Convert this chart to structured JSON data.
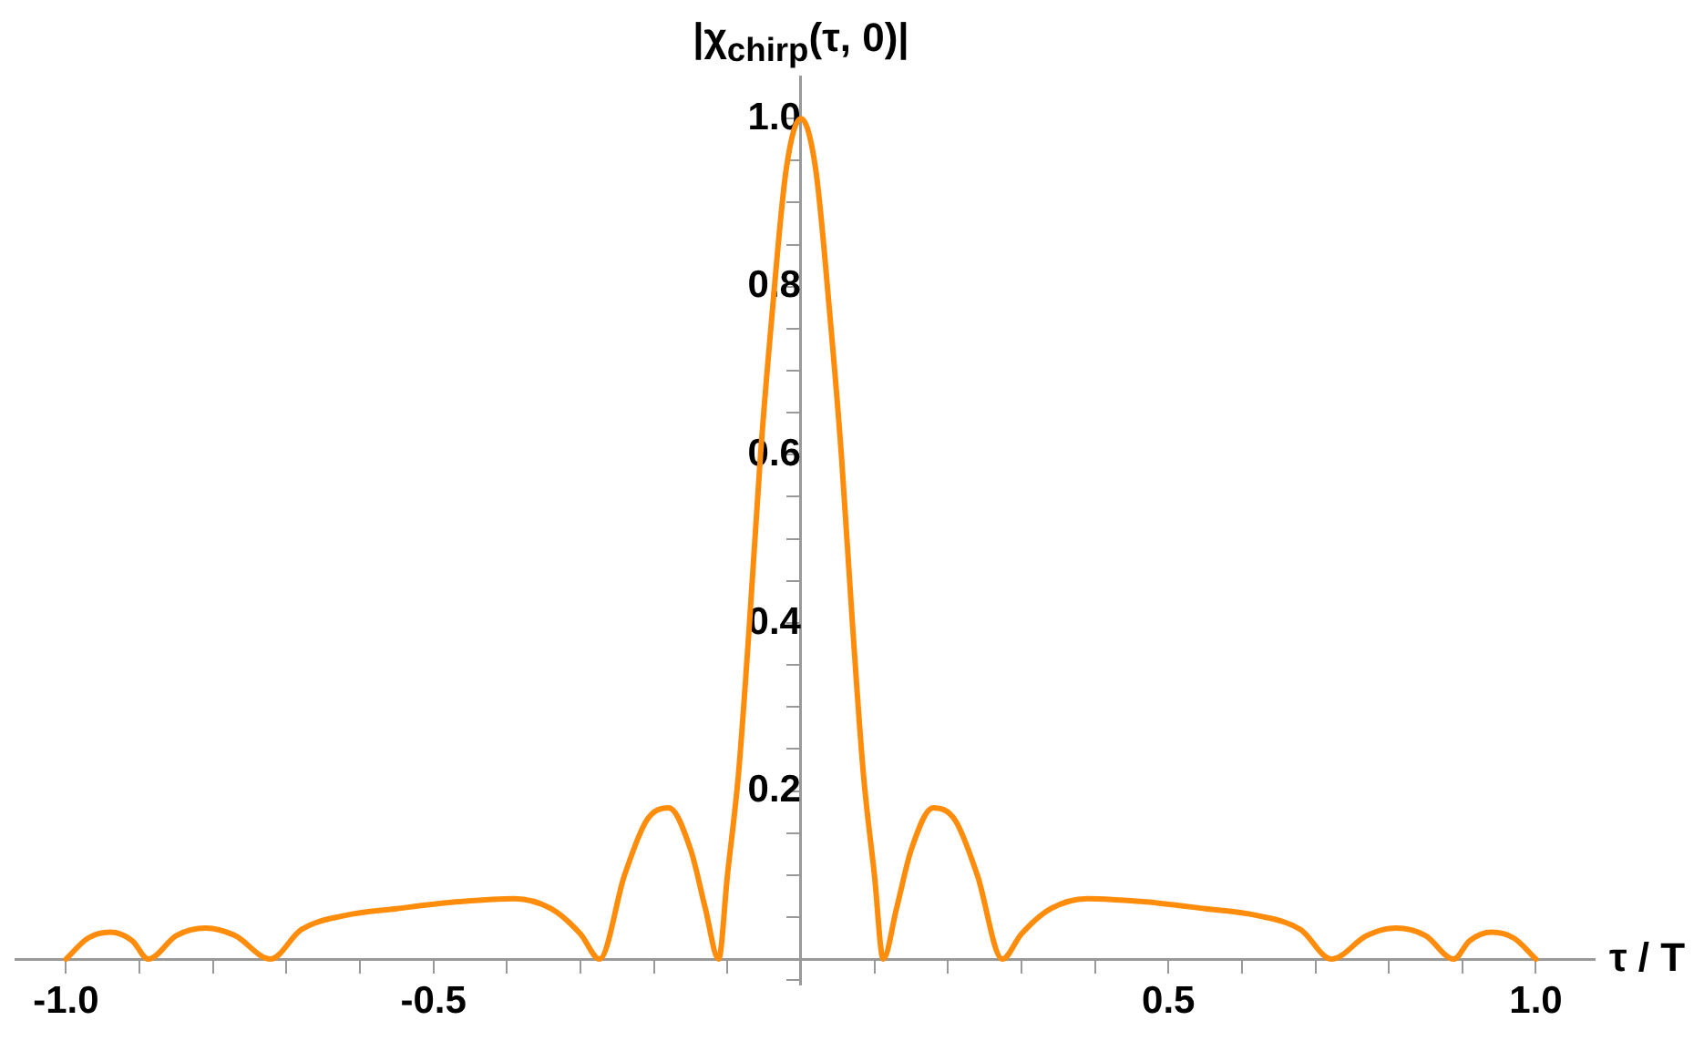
{
  "chart_data": {
    "type": "line",
    "xlabel": "τ / T",
    "ylabel": "|χ$_{chirp}$(τ, 0)|",
    "x": [
      -1,
      -0.97,
      -0.94,
      -0.91,
      -0.888,
      -0.85,
      -0.81,
      -0.77,
      -0.722,
      -0.68,
      -0.62,
      -0.55,
      -0.47,
      -0.39,
      -0.34,
      -0.3,
      -0.274,
      -0.24,
      -0.21,
      -0.18,
      -0.15,
      -0.13,
      -0.112,
      -0.1,
      -0.085,
      -0.07,
      -0.055,
      -0.04,
      -0.02,
      0,
      0.02,
      0.04,
      0.055,
      0.07,
      0.085,
      0.1,
      0.112,
      0.13,
      0.15,
      0.18,
      0.21,
      0.24,
      0.274,
      0.3,
      0.34,
      0.39,
      0.47,
      0.55,
      0.62,
      0.68,
      0.722,
      0.77,
      0.81,
      0.85,
      0.888,
      0.91,
      0.94,
      0.97,
      1
    ],
    "series": [
      {
        "color": "#ff8c0a",
        "values": [
          0,
          0.025,
          0.032,
          0.022,
          0,
          0.028,
          0.037,
          0.028,
          0,
          0.035,
          0.052,
          0.06,
          0.068,
          0.072,
          0.06,
          0.03,
          0,
          0.1,
          0.165,
          0.18,
          0.13,
          0.06,
          0,
          0.1,
          0.22,
          0.4,
          0.6,
          0.76,
          0.94,
          1,
          0.94,
          0.76,
          0.6,
          0.4,
          0.22,
          0.1,
          0,
          0.06,
          0.13,
          0.18,
          0.165,
          0.1,
          0,
          0.03,
          0.06,
          0.072,
          0.068,
          0.06,
          0.052,
          0.035,
          0,
          0.028,
          0.037,
          0.028,
          0,
          0.022,
          0.032,
          0.025,
          0
        ]
      }
    ],
    "xlim": [
      -1.07,
      1.08
    ],
    "ylim": [
      -0.03,
      1.05
    ],
    "xticks": [
      {
        "value": -1,
        "label": "-1.0"
      },
      {
        "value": -0.9,
        "label": null
      },
      {
        "value": -0.8,
        "label": null
      },
      {
        "value": -0.7,
        "label": null
      },
      {
        "value": -0.6,
        "label": null
      },
      {
        "value": -0.5,
        "label": "-0.5"
      },
      {
        "value": -0.4,
        "label": null
      },
      {
        "value": -0.3,
        "label": null
      },
      {
        "value": -0.2,
        "label": null
      },
      {
        "value": -0.1,
        "label": null
      },
      {
        "value": 0.1,
        "label": null
      },
      {
        "value": 0.2,
        "label": null
      },
      {
        "value": 0.3,
        "label": null
      },
      {
        "value": 0.4,
        "label": null
      },
      {
        "value": 0.5,
        "label": "0.5"
      },
      {
        "value": 0.6,
        "label": null
      },
      {
        "value": 0.7,
        "label": null
      },
      {
        "value": 0.8,
        "label": null
      },
      {
        "value": 0.9,
        "label": null
      },
      {
        "value": 1,
        "label": "1.0"
      }
    ],
    "yticks": [
      {
        "value": 0.05,
        "label": null
      },
      {
        "value": 0.1,
        "label": null
      },
      {
        "value": 0.15,
        "label": null
      },
      {
        "value": 0.2,
        "label": "0.2"
      },
      {
        "value": 0.25,
        "label": null
      },
      {
        "value": 0.3,
        "label": null
      },
      {
        "value": 0.35,
        "label": null
      },
      {
        "value": 0.4,
        "label": "0.4"
      },
      {
        "value": 0.45,
        "label": null
      },
      {
        "value": 0.5,
        "label": null
      },
      {
        "value": 0.55,
        "label": null
      },
      {
        "value": 0.6,
        "label": "0.6"
      },
      {
        "value": 0.65,
        "label": null
      },
      {
        "value": 0.7,
        "label": null
      },
      {
        "value": 0.75,
        "label": null
      },
      {
        "value": 0.8,
        "label": "0.8"
      },
      {
        "value": 0.85,
        "label": null
      },
      {
        "value": 0.9,
        "label": null
      },
      {
        "value": 0.95,
        "label": null
      },
      {
        "value": 1,
        "label": "1.0"
      },
      {
        "value": -0.025,
        "label": null
      }
    ],
    "grid": false,
    "legend": false,
    "marker": "none",
    "line_style": "solid"
  }
}
